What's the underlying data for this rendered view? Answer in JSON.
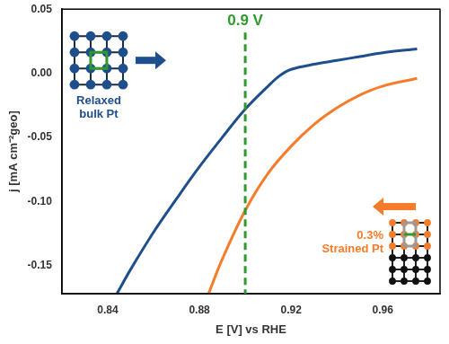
{
  "chart_data": {
    "type": "line",
    "x_label": "E [V] vs RHE",
    "y_label": "j [mA cm⁻²geo]",
    "xlim": [
      0.82,
      0.985
    ],
    "xticks": [
      0.84,
      0.88,
      0.92,
      0.96
    ],
    "ylim": [
      -0.172,
      0.05
    ],
    "yticks": [
      {
        "value": -0.15,
        "label": "-0.15"
      },
      {
        "value": -0.1,
        "label": "-0.10"
      },
      {
        "value": -0.05,
        "label": "-0.05"
      },
      {
        "value": 0,
        "label": "0.00"
      },
      {
        "value": 0.05,
        "label": "0.05"
      }
    ],
    "grid": false,
    "marker": "none",
    "series": [
      {
        "name": "Relaxed bulk Pt",
        "color": "#1f4e8c",
        "line_style": "solid",
        "x": [
          0.844,
          0.85,
          0.86,
          0.87,
          0.88,
          0.89,
          0.9,
          0.91,
          0.915,
          0.92,
          0.93,
          0.94,
          0.95,
          0.96,
          0.975
        ],
        "values": [
          -0.172,
          -0.153,
          -0.124,
          -0.098,
          -0.073,
          -0.05,
          -0.028,
          -0.01,
          -0.002,
          0.003,
          0.007,
          0.01,
          0.013,
          0.016,
          0.019
        ]
      },
      {
        "name": "0.3% Strained Pt",
        "color": "#f57c2a",
        "line_style": "solid",
        "x": [
          0.884,
          0.89,
          0.9,
          0.91,
          0.92,
          0.93,
          0.94,
          0.95,
          0.96,
          0.975
        ],
        "values": [
          -0.172,
          -0.145,
          -0.107,
          -0.078,
          -0.057,
          -0.04,
          -0.027,
          -0.017,
          -0.01,
          -0.004
        ]
      }
    ],
    "vline": {
      "x": 0.9,
      "label": "0.9 V",
      "color": "#2e9a2e",
      "line_style": "dashed"
    },
    "annotations": [
      {
        "text": [
          "Relaxed",
          "bulk Pt"
        ],
        "color": "#1f4e8c"
      },
      {
        "text": [
          "0.3%",
          "Strained Pt"
        ],
        "color": "#f57c2a"
      }
    ]
  }
}
